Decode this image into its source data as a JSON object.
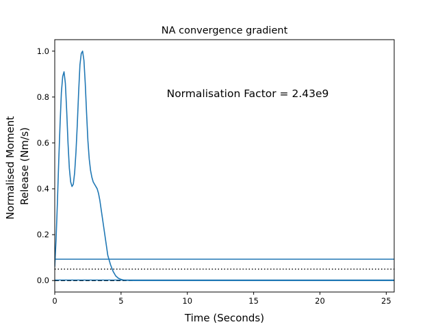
{
  "chart_data": {
    "type": "line",
    "title": "NA convergence gradient",
    "xlabel": "Time (Seconds)",
    "ylabel_lines": [
      "Normalised Moment",
      "Release (Nm/s)"
    ],
    "annotation": "Normalisation Factor = 2.43e9",
    "xlim": [
      0,
      25.6
    ],
    "ylim": [
      -0.05,
      1.05
    ],
    "x_ticks": [
      0,
      5,
      10,
      15,
      20,
      25
    ],
    "x_tick_labels": [
      "0",
      "5",
      "10",
      "15",
      "20",
      "25"
    ],
    "y_ticks": [
      0.0,
      0.2,
      0.4,
      0.6,
      0.8,
      1.0
    ],
    "y_tick_labels": [
      "0.0",
      "0.2",
      "0.4",
      "0.6",
      "0.8",
      "1.0"
    ],
    "grid": false,
    "series": [
      {
        "color": "#1f77b4",
        "style": "solid",
        "x": [
          0.0,
          0.1,
          0.2,
          0.3,
          0.4,
          0.5,
          0.6,
          0.7,
          0.8,
          0.9,
          1.0,
          1.1,
          1.2,
          1.3,
          1.4,
          1.5,
          1.6,
          1.7,
          1.8,
          1.9,
          2.0,
          2.1,
          2.2,
          2.3,
          2.4,
          2.5,
          2.6,
          2.7,
          2.8,
          2.9,
          3.0,
          3.1,
          3.2,
          3.3,
          3.4,
          3.5,
          3.6,
          3.7,
          3.8,
          3.9,
          4.0,
          4.2,
          4.4,
          4.6,
          4.8,
          5.0,
          5.2,
          5.5,
          6.0,
          7.0,
          10.0,
          15.0,
          20.0,
          25.6
        ],
        "y": [
          0.06,
          0.18,
          0.34,
          0.52,
          0.68,
          0.82,
          0.89,
          0.91,
          0.86,
          0.74,
          0.6,
          0.49,
          0.43,
          0.41,
          0.42,
          0.47,
          0.56,
          0.68,
          0.82,
          0.94,
          0.99,
          1.0,
          0.96,
          0.86,
          0.73,
          0.61,
          0.53,
          0.48,
          0.45,
          0.43,
          0.42,
          0.41,
          0.4,
          0.38,
          0.35,
          0.31,
          0.27,
          0.23,
          0.19,
          0.15,
          0.11,
          0.07,
          0.04,
          0.02,
          0.01,
          0.005,
          0.002,
          0.001,
          0.0,
          0.0,
          0.0,
          0.0,
          0.0,
          0.0
        ]
      }
    ],
    "hlines": [
      {
        "y": 0.093,
        "color": "#1f77b4",
        "style": "solid"
      },
      {
        "y": 0.05,
        "color": "#000000",
        "style": "dotted"
      },
      {
        "y": 0.0,
        "color": "#000000",
        "style": "dashed"
      },
      {
        "y": 0.002,
        "color": "#1f77b4",
        "style": "solid"
      }
    ]
  }
}
